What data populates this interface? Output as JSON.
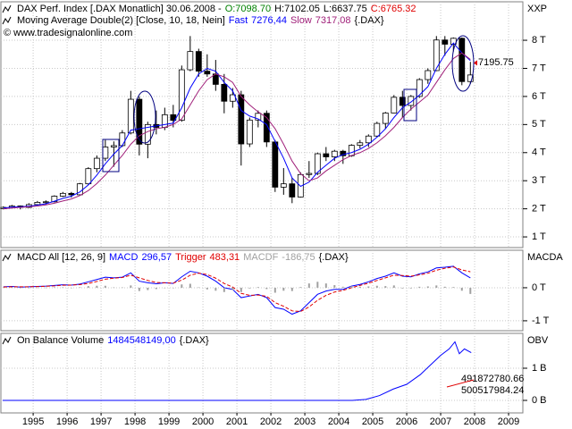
{
  "chart_data": [
    {
      "type": "candlestick",
      "title": "DAX Perf. Index [.DAX  Monatlich] 30.06.2008 -",
      "ohlc_readout": [
        {
          "label": "O:7098.70",
          "color": "#008000"
        },
        {
          "label": "H:7102.05",
          "color": "#000000"
        },
        {
          "label": "L:6637.75",
          "color": "#000000"
        },
        {
          "label": "C:6765.32",
          "color": "#e00000"
        }
      ],
      "subtitle": "Moving Average Double(2) [Close, 10, 18, Nein]",
      "instrument": "{.DAX}",
      "source": "© www.tradesignalonline.com",
      "y_label": "XXP",
      "last_price_label": "7195.75",
      "up_color": "#ffffff",
      "down_color": "#000000",
      "x": [
        1994.625,
        1994.875,
        1995.125,
        1995.375,
        1995.625,
        1995.875,
        1996.125,
        1996.375,
        1996.625,
        1996.875,
        1997.125,
        1997.375,
        1997.625,
        1997.875,
        1998.125,
        1998.375,
        1998.625,
        1998.875,
        1999.125,
        1999.375,
        1999.625,
        1999.875,
        2000.125,
        2000.375,
        2000.625,
        2000.875,
        2001.125,
        2001.375,
        2001.625,
        2001.875,
        2002.125,
        2002.375,
        2002.625,
        2002.875,
        2003.125,
        2003.375,
        2003.625,
        2003.875,
        2004.125,
        2004.375,
        2004.625,
        2004.875,
        2005.125,
        2005.375,
        2005.625,
        2005.875,
        2006.125,
        2006.375,
        2006.625,
        2006.875,
        2007.125,
        2007.375,
        2007.625,
        2007.875,
        2008.125,
        2008.375
      ],
      "open": [
        2000,
        2050,
        2100,
        2050,
        2150,
        2230,
        2250,
        2450,
        2550,
        2500,
        2890,
        3430,
        3800,
        4200,
        4250,
        4700,
        5900,
        4300,
        5000,
        4900,
        5350,
        5150,
        6950,
        7600,
        6900,
        6800,
        6430,
        5830,
        6060,
        4310,
        5160,
        5400,
        4380,
        2770,
        2890,
        2420,
        3220,
        3260,
        3960,
        3850,
        4050,
        3890,
        4260,
        4350,
        4590,
        5040,
        5410,
        5970,
        5680,
        6000,
        6600,
        6920,
        8010,
        7860,
        8070,
        6530
      ],
      "high": [
        2090,
        2140,
        2120,
        2200,
        2280,
        2300,
        2480,
        2600,
        2600,
        2920,
        3480,
        3900,
        4450,
        4400,
        4800,
        6200,
        6000,
        5100,
        5500,
        5600,
        5700,
        7100,
        8150,
        7700,
        7500,
        7300,
        6800,
        6300,
        6200,
        5250,
        5500,
        5500,
        4450,
        3450,
        3100,
        3300,
        3700,
        4000,
        4200,
        4100,
        4100,
        4300,
        4450,
        4650,
        5100,
        5450,
        6050,
        6200,
        6050,
        6650,
        7000,
        8150,
        8150,
        8100,
        8100,
        7230
      ],
      "low": [
        1980,
        2020,
        1980,
        2030,
        2120,
        2150,
        2230,
        2420,
        2400,
        2480,
        2850,
        3300,
        3700,
        3500,
        4200,
        4650,
        3900,
        3800,
        4650,
        4800,
        4900,
        5100,
        6900,
        6700,
        6700,
        6200,
        5400,
        5600,
        3540,
        4200,
        4900,
        4200,
        2600,
        2500,
        2200,
        2400,
        3100,
        3200,
        3700,
        3700,
        3600,
        3850,
        4150,
        4200,
        4550,
        4850,
        5400,
        5250,
        5500,
        5950,
        6450,
        6900,
        7450,
        7600,
        6400,
        6450
      ],
      "close": [
        2050,
        2100,
        2050,
        2150,
        2230,
        2250,
        2450,
        2550,
        2500,
        2890,
        3430,
        3800,
        4200,
        4250,
        4700,
        5900,
        4300,
        5000,
        4900,
        5350,
        5150,
        6950,
        7600,
        6900,
        6800,
        6430,
        5830,
        6060,
        4310,
        5160,
        5400,
        4380,
        2770,
        2890,
        2420,
        3220,
        3260,
        3960,
        3850,
        4050,
        3890,
        4260,
        4350,
        4590,
        5040,
        5410,
        5970,
        5680,
        6000,
        6600,
        6920,
        8010,
        7860,
        8070,
        6530,
        6765
      ],
      "series": [
        {
          "name": "Fast",
          "legend_value": "7276,44",
          "color": "#0000ff",
          "values": [
            2030,
            2060,
            2070,
            2090,
            2130,
            2180,
            2270,
            2370,
            2450,
            2600,
            2850,
            3200,
            3600,
            3950,
            4250,
            4800,
            4850,
            4900,
            4950,
            5000,
            5050,
            5600,
            6300,
            6800,
            7000,
            6900,
            6500,
            6200,
            5500,
            5300,
            5200,
            5000,
            4400,
            3800,
            3100,
            2800,
            2950,
            3300,
            3550,
            3800,
            3930,
            4000,
            4120,
            4300,
            4550,
            4850,
            5250,
            5600,
            5800,
            6050,
            6350,
            7000,
            7500,
            7900,
            7550,
            7276
          ]
        },
        {
          "name": "Slow",
          "legend_value": "7317,08",
          "color": "#a0207a",
          "values": [
            2000,
            2030,
            2050,
            2070,
            2100,
            2140,
            2200,
            2280,
            2350,
            2470,
            2650,
            2900,
            3200,
            3550,
            3900,
            4300,
            4600,
            4750,
            4850,
            4900,
            5000,
            5200,
            5700,
            6200,
            6600,
            6800,
            6700,
            6500,
            6000,
            5700,
            5450,
            5250,
            4850,
            4300,
            3700,
            3250,
            3000,
            3100,
            3350,
            3550,
            3750,
            3900,
            4000,
            4150,
            4350,
            4600,
            4900,
            5250,
            5550,
            5800,
            6050,
            6500,
            6950,
            7350,
            7550,
            7317
          ]
        }
      ],
      "xlim": [
        1994.55,
        2009.92
      ],
      "ylim": [
        620,
        9370
      ],
      "yticks": [
        {
          "value": 1000,
          "label": "1 T"
        },
        {
          "value": 2000,
          "label": "2 T"
        },
        {
          "value": 3000,
          "label": "3 T"
        },
        {
          "value": 4000,
          "label": "4 T"
        },
        {
          "value": 5000,
          "label": "5 T"
        },
        {
          "value": 6000,
          "label": "6 T"
        },
        {
          "value": 7000,
          "label": "7 T"
        },
        {
          "value": 8000,
          "label": "8 T"
        }
      ],
      "grid": true
    },
    {
      "type": "line",
      "title": "MACD All [12, 26, 9]",
      "instrument": "{.DAX}",
      "y_label": "MACDA",
      "x": [
        1994.625,
        1994.875,
        1995.125,
        1995.375,
        1995.625,
        1995.875,
        1996.125,
        1996.375,
        1996.625,
        1996.875,
        1997.125,
        1997.375,
        1997.625,
        1997.875,
        1998.125,
        1998.375,
        1998.625,
        1998.875,
        1999.125,
        1999.375,
        1999.625,
        1999.875,
        2000.125,
        2000.375,
        2000.625,
        2000.875,
        2001.125,
        2001.375,
        2001.625,
        2001.875,
        2002.125,
        2002.375,
        2002.625,
        2002.875,
        2003.125,
        2003.375,
        2003.625,
        2003.875,
        2004.125,
        2004.375,
        2004.625,
        2004.875,
        2005.125,
        2005.375,
        2005.625,
        2005.875,
        2006.125,
        2006.375,
        2006.625,
        2006.875,
        2007.125,
        2007.375,
        2007.625,
        2007.875,
        2008.125,
        2008.375
      ],
      "series": [
        {
          "name": "MACD",
          "legend_value": "296,57",
          "color": "#0000ff",
          "style": "line",
          "values": [
            30,
            40,
            20,
            30,
            40,
            50,
            70,
            90,
            80,
            110,
            180,
            250,
            320,
            300,
            320,
            450,
            200,
            150,
            120,
            150,
            130,
            330,
            500,
            450,
            350,
            200,
            0,
            -50,
            -300,
            -250,
            -200,
            -300,
            -600,
            -650,
            -800,
            -700,
            -450,
            -200,
            -100,
            -50,
            -50,
            50,
            100,
            180,
            280,
            350,
            450,
            350,
            330,
            420,
            480,
            600,
            620,
            650,
            450,
            297
          ]
        },
        {
          "name": "Trigger",
          "legend_value": "483,31",
          "color": "#e00000",
          "style": "dashed",
          "values": [
            20,
            30,
            30,
            30,
            35,
            45,
            55,
            75,
            80,
            95,
            130,
            190,
            260,
            290,
            310,
            380,
            300,
            220,
            160,
            150,
            140,
            230,
            380,
            440,
            400,
            290,
            130,
            20,
            -170,
            -230,
            -220,
            -260,
            -450,
            -560,
            -700,
            -720,
            -580,
            -380,
            -230,
            -130,
            -80,
            0,
            70,
            140,
            220,
            300,
            380,
            370,
            350,
            390,
            440,
            530,
            590,
            630,
            540,
            483
          ]
        },
        {
          "name": "MACDF",
          "legend_value": "-186,75",
          "color": "#a0a0a0",
          "style": "histogram",
          "values": [
            10,
            10,
            -10,
            0,
            5,
            5,
            15,
            15,
            0,
            15,
            50,
            60,
            60,
            10,
            10,
            70,
            -100,
            -70,
            -40,
            0,
            -10,
            100,
            120,
            10,
            -50,
            -90,
            -130,
            -70,
            -130,
            -20,
            20,
            -40,
            -150,
            -90,
            -100,
            20,
            130,
            180,
            130,
            80,
            30,
            50,
            30,
            40,
            60,
            50,
            70,
            -20,
            -20,
            30,
            40,
            70,
            30,
            20,
            -90,
            -187
          ]
        }
      ],
      "xlim": [
        1994.55,
        2009.92
      ],
      "ylim": [
        -1300,
        1135
      ],
      "yticks": [
        {
          "value": 0,
          "label": "0 T"
        },
        {
          "value": -1000,
          "label": "-1 T"
        }
      ],
      "grid": true
    },
    {
      "type": "line",
      "title": "On Balance Volume",
      "instrument": "{.DAX}",
      "y_label": "OBV",
      "annotations": [
        "491872780.66",
        "500517984.24"
      ],
      "x": [
        1994.6,
        2004.9,
        2005.3,
        2005.7,
        2006.1,
        2006.5,
        2006.9,
        2007.2,
        2007.5,
        2007.75,
        2007.92,
        2008.05,
        2008.2,
        2008.4
      ],
      "series": [
        {
          "legend_value": "1484548149,00",
          "color": "#0000ff",
          "style": "line",
          "values": [
            0,
            0,
            30000000,
            150000000,
            350000000,
            500000000,
            800000000,
            1100000000,
            1400000000,
            1600000000,
            1820000000,
            1450000000,
            1600000000,
            1485000000
          ]
        }
      ],
      "xlim": [
        1994.55,
        2009.92
      ],
      "ylim": [
        -389000000,
        2083000000
      ],
      "yticks": [
        {
          "value": 1000000000,
          "label": "1 B"
        },
        {
          "value": 0,
          "label": "0 B"
        }
      ],
      "xticks": [
        {
          "value": 1995.5,
          "label": "1995"
        },
        {
          "value": 1996.5,
          "label": "1996"
        },
        {
          "value": 1997.5,
          "label": "1997"
        },
        {
          "value": 1998.5,
          "label": "1998"
        },
        {
          "value": 1999.5,
          "label": "1999"
        },
        {
          "value": 2000.5,
          "label": "2000"
        },
        {
          "value": 2001.5,
          "label": "2001"
        },
        {
          "value": 2002.5,
          "label": "2002"
        },
        {
          "value": 2003.5,
          "label": "2003"
        },
        {
          "value": 2004.5,
          "label": "2004"
        },
        {
          "value": 2005.5,
          "label": "2005"
        },
        {
          "value": 2006.5,
          "label": "2006"
        },
        {
          "value": 2007.5,
          "label": "2007"
        },
        {
          "value": 2008.5,
          "label": "2008"
        },
        {
          "value": 2009.5,
          "label": "2009"
        }
      ],
      "grid": true
    }
  ]
}
